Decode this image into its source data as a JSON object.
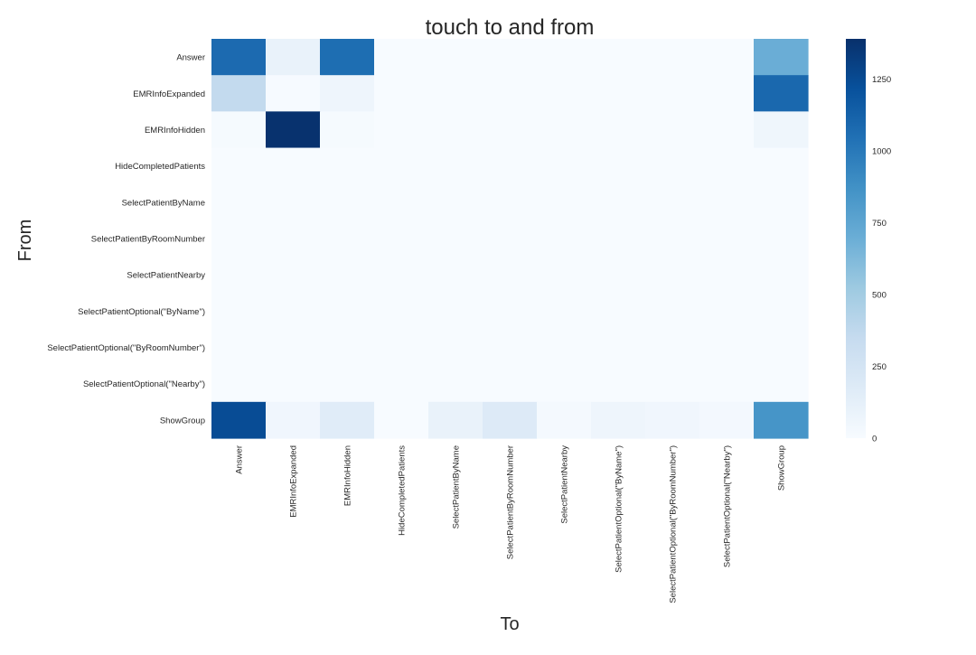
{
  "chart_data": {
    "type": "heatmap",
    "title": "touch to and from",
    "xlabel": "To",
    "ylabel": "From",
    "colormap": "Blues",
    "colormap_stops": [
      "#f7fbff",
      "#deebf7",
      "#c6dbef",
      "#9ecae1",
      "#6baed6",
      "#4292c6",
      "#2171b5",
      "#08519c",
      "#08306b"
    ],
    "vmin": 0,
    "vmax": 1390,
    "colorbar_ticks": [
      0,
      250,
      500,
      750,
      1000,
      1250
    ],
    "rows": [
      "Answer",
      "EMRInfoExpanded",
      "EMRInfoHidden",
      "HideCompletedPatients",
      "SelectPatientByName",
      "SelectPatientByRoomNumber",
      "SelectPatientNearby",
      "SelectPatientOptional(\"ByName\")",
      "SelectPatientOptional(\"ByRoomNumber\")",
      "SelectPatientOptional(\"Nearby\")",
      "ShowGroup"
    ],
    "columns": [
      "Answer",
      "EMRInfoExpanded",
      "EMRInfoHidden",
      "HideCompletedPatients",
      "SelectPatientByName",
      "SelectPatientByRoomNumber",
      "SelectPatientNearby",
      "SelectPatientOptional(\"ByName\")",
      "SelectPatientOptional(\"ByRoomNumber\")",
      "SelectPatientOptional(\"Nearby\")",
      "ShowGroup"
    ],
    "values": [
      [
        1080,
        100,
        1060,
        0,
        0,
        0,
        0,
        0,
        0,
        0,
        700
      ],
      [
        360,
        10,
        60,
        0,
        0,
        0,
        0,
        0,
        0,
        0,
        1090
      ],
      [
        12,
        1380,
        12,
        0,
        0,
        0,
        0,
        0,
        0,
        0,
        55
      ],
      [
        0,
        0,
        0,
        0,
        0,
        0,
        0,
        0,
        0,
        0,
        0
      ],
      [
        0,
        0,
        0,
        0,
        0,
        0,
        0,
        0,
        0,
        0,
        0
      ],
      [
        0,
        0,
        0,
        0,
        0,
        0,
        0,
        0,
        0,
        0,
        0
      ],
      [
        0,
        0,
        0,
        0,
        0,
        0,
        0,
        0,
        0,
        0,
        0
      ],
      [
        0,
        0,
        0,
        0,
        0,
        0,
        0,
        0,
        0,
        0,
        0
      ],
      [
        0,
        0,
        0,
        0,
        0,
        0,
        0,
        0,
        0,
        0,
        0
      ],
      [
        0,
        0,
        0,
        0,
        0,
        0,
        0,
        0,
        0,
        0,
        0
      ],
      [
        1240,
        50,
        160,
        0,
        100,
        180,
        20,
        60,
        50,
        30,
        850
      ]
    ]
  }
}
